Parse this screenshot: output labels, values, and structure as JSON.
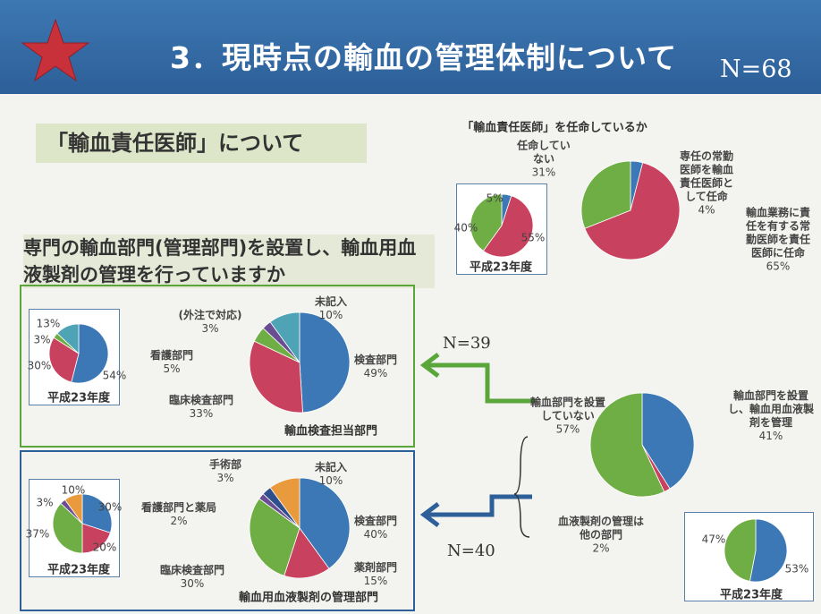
{
  "header": {
    "title": "3．現時点の輸血の管理体制について",
    "n": "N=68"
  },
  "section": "「輸血責任医師」について",
  "question": "専門の輸血部門(管理部門)を設置し、輸血用血液製剤の管理を行っていますか",
  "chart_data": [
    {
      "type": "pie",
      "title": "「輸血責任医師」を任命しているか",
      "categories": [
        "専任の常勤医師を輸血責任医師として任命",
        "輸血業務に責任を有する常勤医師を責任医師に任命",
        "任命していない"
      ],
      "values": [
        4,
        65,
        31
      ],
      "value_labels": [
        "4%",
        "65%",
        "31%"
      ],
      "colors": [
        "#3b78b5",
        "#c8415f",
        "#6fae45"
      ]
    },
    {
      "type": "pie",
      "title": "平成23年度",
      "values": [
        5,
        55,
        40
      ],
      "value_labels": [
        "5%",
        "55%",
        "40%"
      ],
      "colors": [
        "#3b78b5",
        "#c8415f",
        "#6fae45"
      ]
    },
    {
      "type": "pie",
      "title": "輸血検査担当部門",
      "annotation": "N=39",
      "categories": [
        "検査部門",
        "臨床検査部門",
        "看護部門",
        "(外注で対応)",
        "未記入"
      ],
      "values": [
        49,
        33,
        5,
        3,
        10
      ],
      "value_labels": [
        "49%",
        "33%",
        "5%",
        "3%",
        "10%"
      ],
      "colors": [
        "#3b78b5",
        "#c8415f",
        "#6fae45",
        "#6a4c93",
        "#4ea3b5"
      ]
    },
    {
      "type": "pie",
      "title": "平成23年度",
      "values": [
        54,
        30,
        3,
        13
      ],
      "value_labels": [
        "54%",
        "30%",
        "3%",
        "13%"
      ],
      "colors": [
        "#3b78b5",
        "#c8415f",
        "#6fae45",
        "#4ea3b5"
      ]
    },
    {
      "type": "pie",
      "title": "輸血用血液製剤の管理部門",
      "annotation": "N=40",
      "categories": [
        "検査部門",
        "薬剤部門",
        "臨床検査部門",
        "看護部門と薬局",
        "手術部",
        "未記入"
      ],
      "values": [
        40,
        15,
        30,
        2,
        3,
        10
      ],
      "value_labels": [
        "40%",
        "15%",
        "30%",
        "2%",
        "3%",
        "10%"
      ],
      "colors": [
        "#3b78b5",
        "#c8415f",
        "#6fae45",
        "#6a4c93",
        "#2f4e8c",
        "#e89a3c"
      ]
    },
    {
      "type": "pie",
      "title": "平成23年度",
      "values": [
        30,
        20,
        37,
        3,
        10
      ],
      "value_labels": [
        "30%",
        "20%",
        "37%",
        "3%",
        "10%"
      ],
      "colors": [
        "#3b78b5",
        "#c8415f",
        "#6fae45",
        "#6a4c93",
        "#e89a3c"
      ]
    },
    {
      "type": "pie",
      "categories": [
        "輸血部門を設置し、輸血用血液製剤を管理",
        "血液製剤の管理は他の部門",
        "輸血部門を設置していない"
      ],
      "values": [
        41,
        2,
        57
      ],
      "value_labels": [
        "41%",
        "2%",
        "57%"
      ],
      "colors": [
        "#3b78b5",
        "#c8415f",
        "#6fae45"
      ]
    },
    {
      "type": "pie",
      "title": "平成23年度",
      "values": [
        53,
        47
      ],
      "value_labels": [
        "53%",
        "47%"
      ],
      "colors": [
        "#3b78b5",
        "#6fae45"
      ]
    }
  ]
}
